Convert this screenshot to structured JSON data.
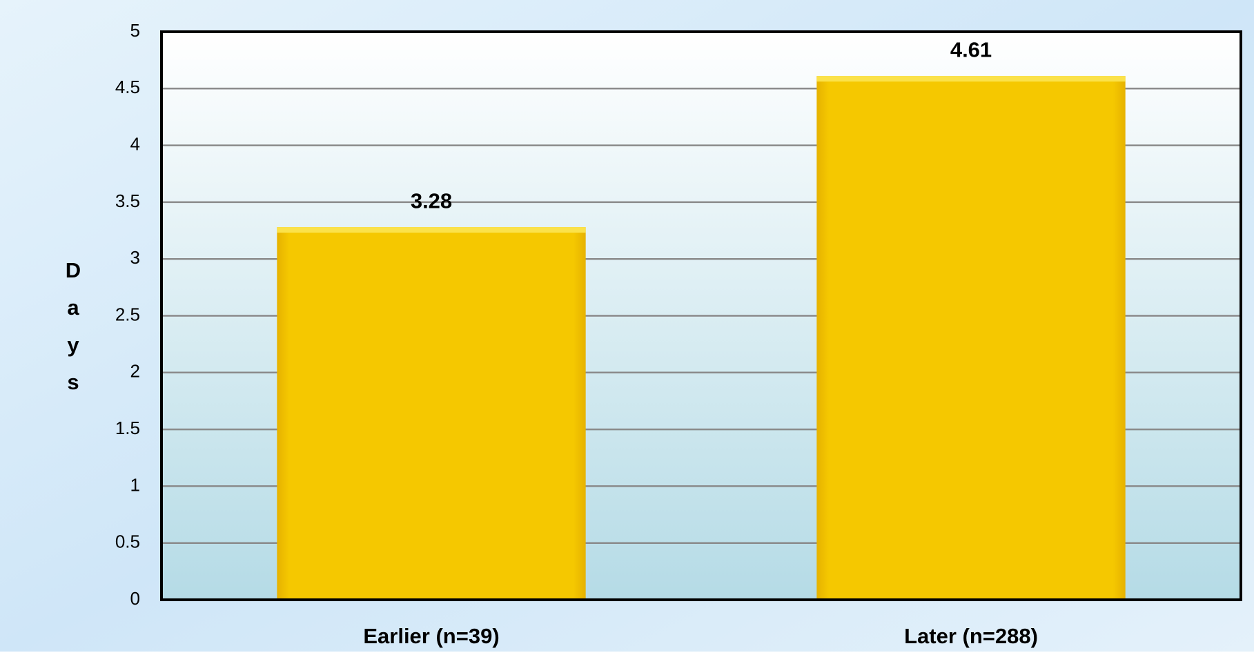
{
  "chart_data": {
    "type": "bar",
    "y_label": "Days",
    "categories": [
      "Earlier (n=39)",
      "Later (n=288)"
    ],
    "values": [
      3.28,
      4.61
    ],
    "color": "#f5c800",
    "ylim": [
      0,
      5
    ],
    "yticks": [
      0,
      0.5,
      1,
      1.5,
      2,
      2.5,
      3,
      3.5,
      4,
      4.5,
      5
    ],
    "grid": true
  }
}
